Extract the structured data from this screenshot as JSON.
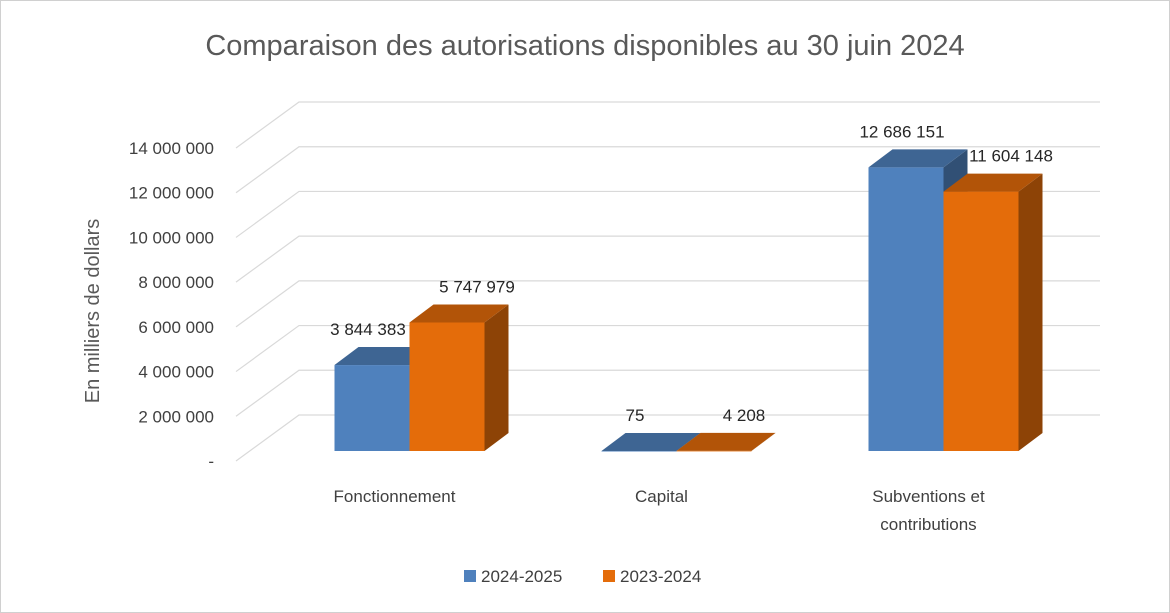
{
  "chart_data": {
    "type": "bar",
    "style": "3d-clustered-column",
    "title": "Comparaison des autorisations disponibles au 30 juin 2024",
    "ylabel": "En milliers de dollars",
    "xlabel": "",
    "categories": [
      "Fonctionnement",
      "Capital",
      "Subventions et contributions"
    ],
    "category_lines": [
      [
        "Fonctionnement"
      ],
      [
        "Capital"
      ],
      [
        "Subventions et",
        "contributions"
      ]
    ],
    "series": [
      {
        "name": "2024-2025",
        "color": "#4f81bd",
        "values": [
          3844383,
          75,
          12686151
        ],
        "labels": [
          "3 844 383",
          "75",
          "12 686 151"
        ]
      },
      {
        "name": "2023-2024",
        "color": "#e46c0a",
        "values": [
          5747979,
          4208,
          11604148
        ],
        "labels": [
          "5 747 979",
          "4 208",
          "11 604 148"
        ]
      }
    ],
    "ylim": [
      0,
      14000000
    ],
    "yticks": [
      0,
      2000000,
      4000000,
      6000000,
      8000000,
      10000000,
      12000000,
      14000000
    ],
    "ytick_labels": [
      "-",
      "2 000 000",
      "4 000 000",
      "6 000 000",
      "8 000 000",
      "10 000 000",
      "12 000 000",
      "14 000 000"
    ],
    "grid": true,
    "legend_position": "bottom"
  }
}
